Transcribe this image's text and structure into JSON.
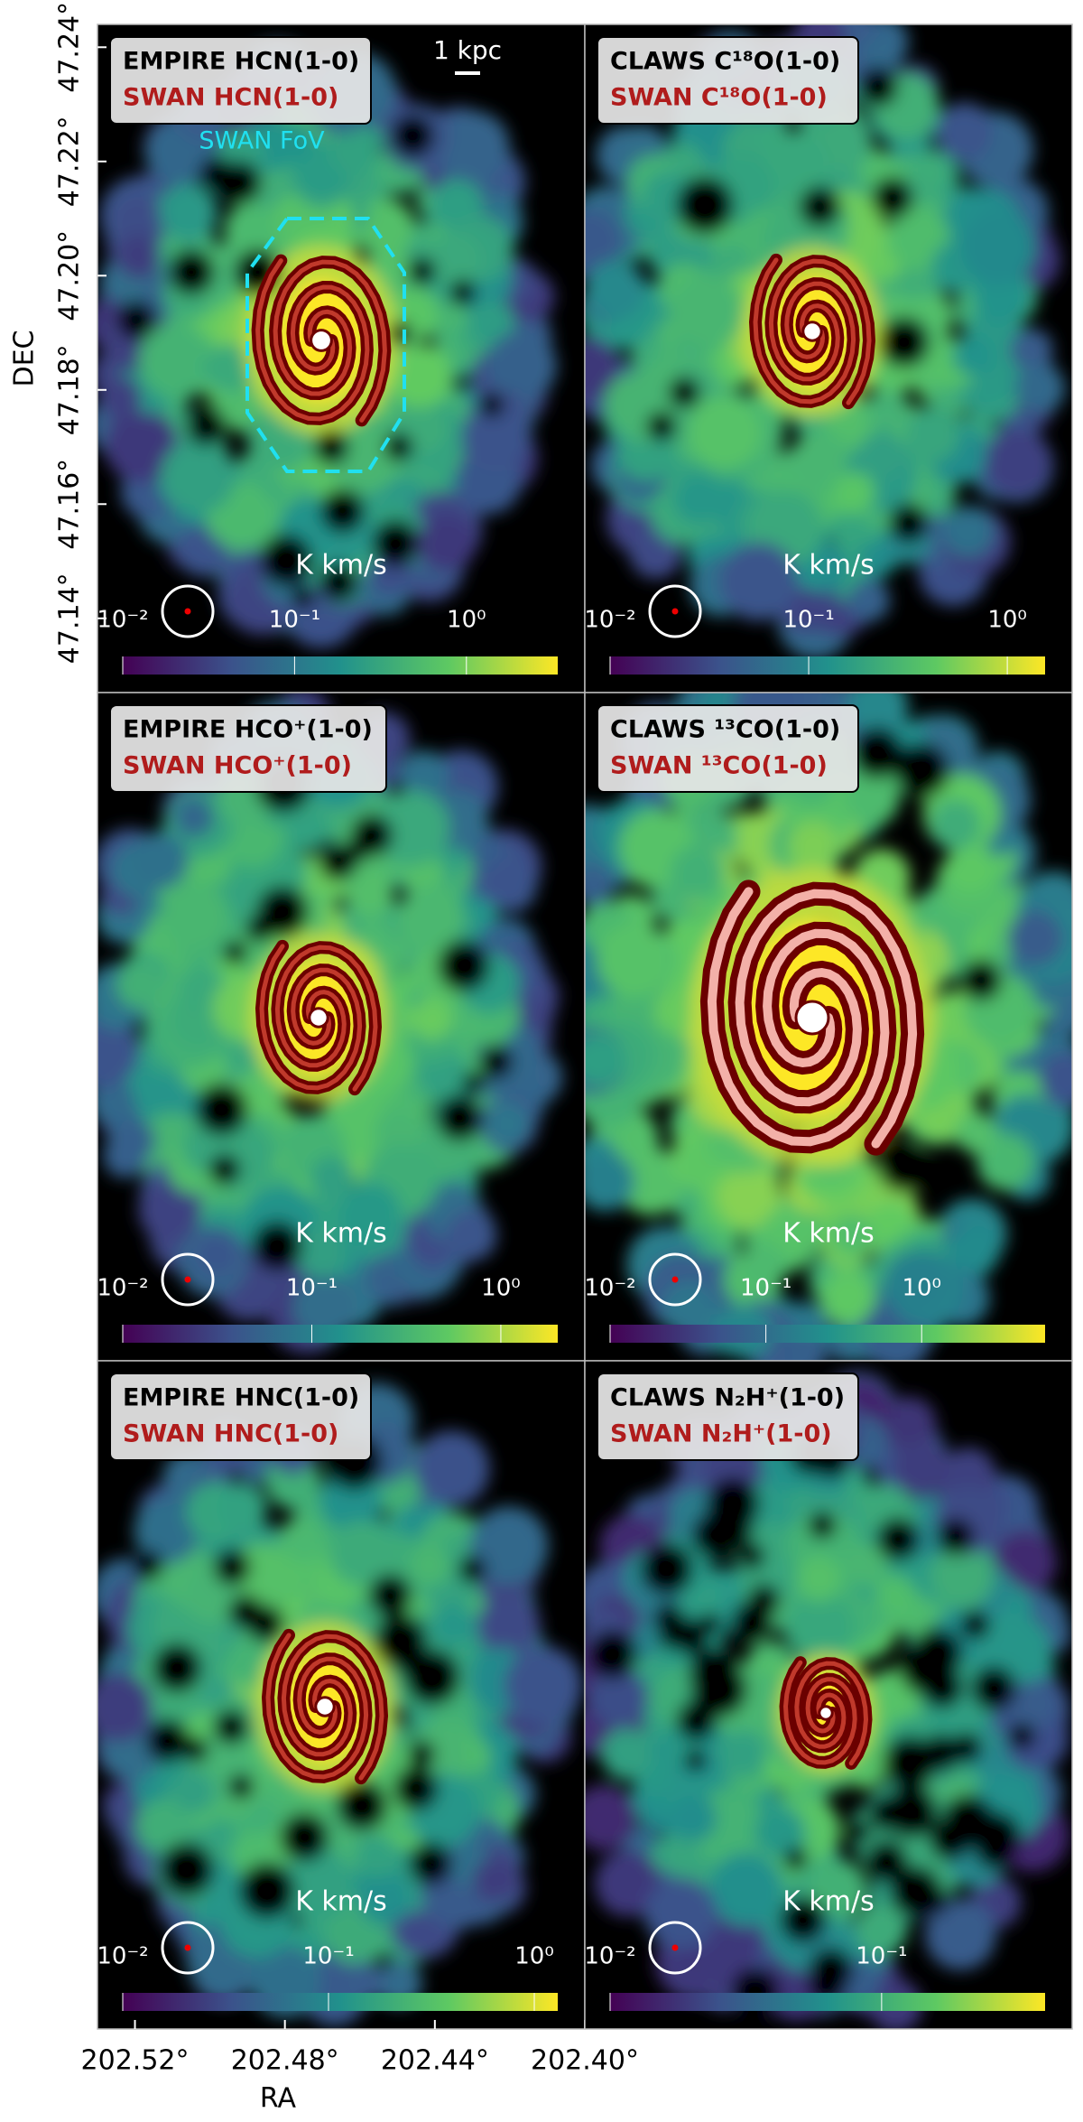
{
  "chart_data": [
    {
      "type": "image",
      "title": "EMPIRE HCN(1-0)",
      "subtitle": "SWAN HCN(1-0)",
      "annotations": [
        "1 kpc",
        "SWAN FoV"
      ],
      "ylabel": "DEC",
      "ylim": [
        47.127,
        47.244
      ],
      "yticks": [
        {
          "value": 47.14,
          "label": "47.14°"
        },
        {
          "value": 47.16,
          "label": "47.16°"
        },
        {
          "value": 47.18,
          "label": "47.18°"
        },
        {
          "value": 47.2,
          "label": "47.20°"
        },
        {
          "value": 47.22,
          "label": "47.22°"
        },
        {
          "value": 47.24,
          "label": "47.24°"
        }
      ],
      "colorbar": {
        "label": "K km/s",
        "log": true,
        "cmap": "viridis",
        "lim": [
          0.01,
          3.4
        ],
        "ticks": [
          {
            "value": 0.01,
            "label": "10⁻²"
          },
          {
            "value": 0.1,
            "label": "10⁻¹"
          },
          {
            "value": 1,
            "label": "10⁰"
          }
        ]
      }
    },
    {
      "type": "image",
      "title": "CLAWS C¹⁸O(1-0)",
      "subtitle": "SWAN C¹⁸O(1-0)",
      "colorbar": {
        "label": "K km/s",
        "log": true,
        "cmap": "viridis",
        "lim": [
          0.01,
          1.55
        ],
        "ticks": [
          {
            "value": 0.01,
            "label": "10⁻²"
          },
          {
            "value": 0.1,
            "label": "10⁻¹"
          },
          {
            "value": 1,
            "label": "10⁰"
          }
        ]
      }
    },
    {
      "type": "image",
      "title": "EMPIRE HCO⁺(1-0)",
      "subtitle": "SWAN HCO⁺(1-0)",
      "colorbar": {
        "label": "K km/s",
        "log": true,
        "cmap": "viridis",
        "lim": [
          0.01,
          2
        ],
        "ticks": [
          {
            "value": 0.01,
            "label": "10⁻²"
          },
          {
            "value": 0.1,
            "label": "10⁻¹"
          },
          {
            "value": 1,
            "label": "10⁰"
          }
        ]
      }
    },
    {
      "type": "image",
      "title": "CLAWS ¹³CO(1-0)",
      "subtitle": "SWAN ¹³CO(1-0)",
      "colorbar": {
        "label": "K km/s",
        "log": true,
        "cmap": "viridis",
        "lim": [
          0.01,
          6.2
        ],
        "ticks": [
          {
            "value": 0.01,
            "label": "10⁻²"
          },
          {
            "value": 0.1,
            "label": "10⁻¹"
          },
          {
            "value": 1,
            "label": "10⁰"
          }
        ]
      }
    },
    {
      "type": "image",
      "title": "EMPIRE HNC(1-0)",
      "subtitle": "SWAN HNC(1-0)",
      "xlabel": "RA",
      "xlim": [
        202.53,
        202.4
      ],
      "xticks": [
        {
          "value": 202.52,
          "label": "202.52°"
        },
        {
          "value": 202.48,
          "label": "202.48°"
        },
        {
          "value": 202.44,
          "label": "202.44°"
        },
        {
          "value": 202.4,
          "label": "202.40°"
        }
      ],
      "colorbar": {
        "label": "K km/s",
        "log": true,
        "cmap": "viridis",
        "lim": [
          0.01,
          1.3
        ],
        "ticks": [
          {
            "value": 0.01,
            "label": "10⁻²"
          },
          {
            "value": 0.1,
            "label": "10⁻¹"
          },
          {
            "value": 1,
            "label": "10⁰"
          }
        ]
      }
    },
    {
      "type": "image",
      "title": "CLAWS N₂H⁺(1-0)",
      "subtitle": "SWAN N₂H⁺(1-0)",
      "colorbar": {
        "label": "K km/s",
        "log": true,
        "cmap": "viridis",
        "lim": [
          0.01,
          0.4
        ],
        "ticks": [
          {
            "value": 0.01,
            "label": "10⁻²"
          },
          {
            "value": 0.1,
            "label": "10⁻¹"
          }
        ]
      }
    }
  ]
}
